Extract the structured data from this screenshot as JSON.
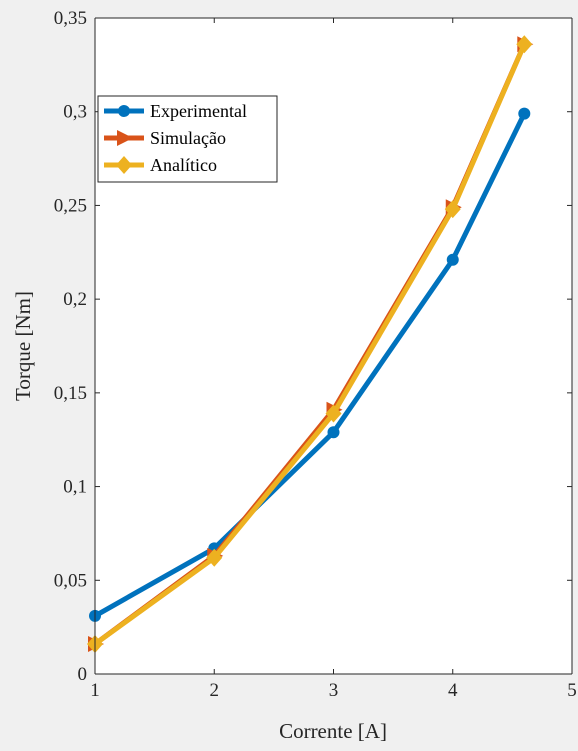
{
  "chart_data": {
    "type": "line",
    "xlabel": "Corrente [A]",
    "ylabel": "Torque [Nm]",
    "xlim": [
      1,
      5
    ],
    "ylim": [
      0,
      0.35
    ],
    "xticks": [
      1,
      2,
      3,
      4,
      5
    ],
    "yticks": [
      0,
      0.05,
      0.1,
      0.15,
      0.2,
      0.25,
      0.3,
      0.35
    ],
    "xtick_labels": [
      "1",
      "2",
      "3",
      "4",
      "5"
    ],
    "ytick_labels": [
      "0",
      "0,05",
      "0,1",
      "0,15",
      "0,2",
      "0,25",
      "0,3",
      "0,35"
    ],
    "grid": false,
    "legend_position": "top-left",
    "series": [
      {
        "name": "Experimental",
        "color": "#0072BD",
        "marker": "circle",
        "x": [
          1,
          2,
          3,
          4,
          4.6
        ],
        "y": [
          0.031,
          0.067,
          0.129,
          0.221,
          0.299
        ]
      },
      {
        "name": "Simulação",
        "color": "#D95319",
        "marker": "triangle-right",
        "x": [
          1,
          2,
          3,
          4,
          4.6
        ],
        "y": [
          0.016,
          0.063,
          0.141,
          0.249,
          0.336
        ]
      },
      {
        "name": "Analítico",
        "color": "#EDB120",
        "marker": "diamond",
        "x": [
          1,
          2,
          3,
          4,
          4.6
        ],
        "y": [
          0.016,
          0.062,
          0.139,
          0.248,
          0.336
        ]
      }
    ]
  }
}
